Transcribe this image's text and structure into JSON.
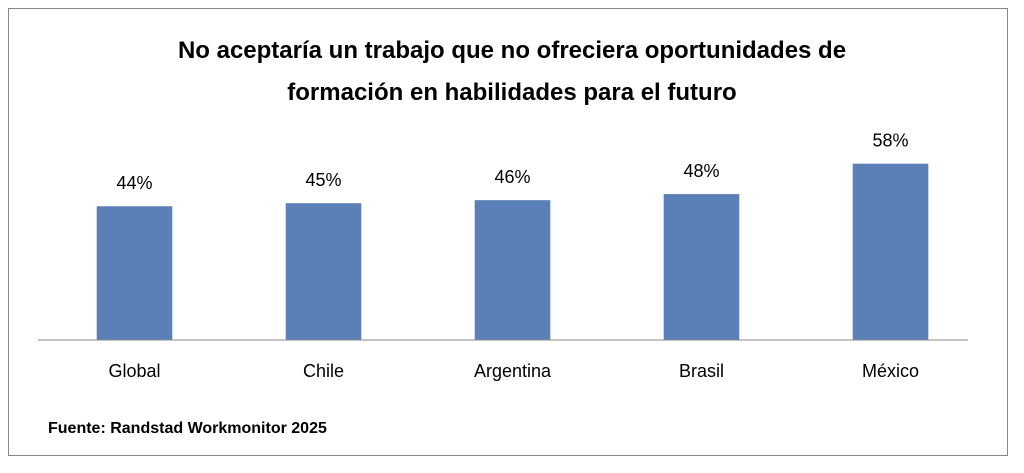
{
  "chart_data": {
    "type": "bar",
    "title": "No aceptaría un trabajo que no ofreciera oportunidades de formación en habilidades para el futuro",
    "categories": [
      "Global",
      "Chile",
      "Argentina",
      "Brasil",
      "México"
    ],
    "values": [
      44,
      45,
      46,
      48,
      58
    ],
    "value_labels": [
      "44%",
      "45%",
      "46%",
      "48%",
      "58%"
    ],
    "color": "#5b80b8",
    "ylim": [
      0,
      100
    ],
    "source": "Fuente: Randstad Workmonitor 2025"
  }
}
